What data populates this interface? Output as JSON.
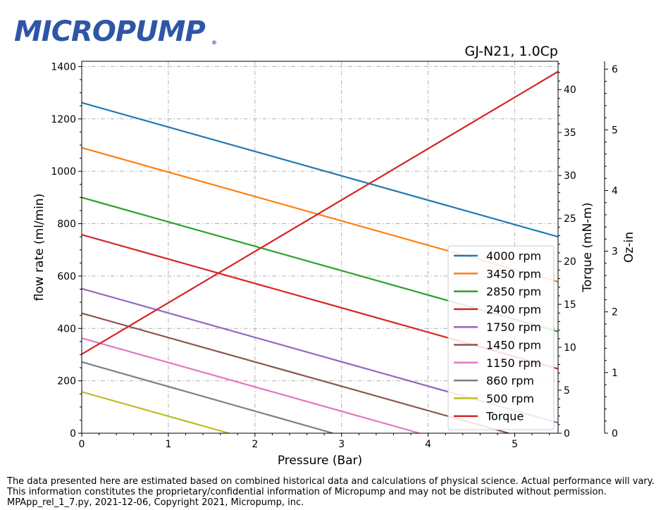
{
  "brand": {
    "logo_text": "MICROPUMP",
    "logo_mark": "®",
    "logo_color": "#2f56a6"
  },
  "chart_data": {
    "type": "line",
    "title": "GJ-N21,  1.0Cp",
    "xlabel": "Pressure (Bar)",
    "ylabel": "flow rate (ml/min)",
    "y2label": "Torque (mN-m)",
    "y3label": "Oz-in",
    "xlim": [
      0,
      5.5
    ],
    "ylim": [
      0,
      1420
    ],
    "y2lim": [
      0,
      43.3
    ],
    "y3lim": [
      0,
      6.13
    ],
    "xticks": [
      0,
      1,
      2,
      3,
      4,
      5
    ],
    "yticks": [
      0,
      200,
      400,
      600,
      800,
      1000,
      1200,
      1400
    ],
    "y2ticks": [
      0,
      5,
      10,
      15,
      20,
      25,
      30,
      35,
      40
    ],
    "y3ticks": [
      0,
      1,
      2,
      3,
      4,
      5,
      6
    ],
    "grid": true,
    "legend_position": "lower-right",
    "series": [
      {
        "name": "4000 rpm",
        "color": "#1f77b4",
        "axis": "flow",
        "x": [
          0,
          5.5
        ],
        "y": [
          1262,
          750
        ]
      },
      {
        "name": "3450 rpm",
        "color": "#ff7f0e",
        "axis": "flow",
        "x": [
          0,
          5.5
        ],
        "y": [
          1090,
          578
        ]
      },
      {
        "name": "2850 rpm",
        "color": "#2ca02c",
        "axis": "flow",
        "x": [
          0,
          5.5
        ],
        "y": [
          900,
          388
        ]
      },
      {
        "name": "2400 rpm",
        "color": "#d62728",
        "axis": "flow",
        "x": [
          0,
          5.5
        ],
        "y": [
          758,
          246
        ]
      },
      {
        "name": "1750 rpm",
        "color": "#9467bd",
        "axis": "flow",
        "x": [
          0,
          5.5
        ],
        "y": [
          552,
          40
        ]
      },
      {
        "name": "1450 rpm",
        "color": "#8c564b",
        "axis": "flow",
        "x": [
          0,
          4.93
        ],
        "y": [
          458,
          0
        ]
      },
      {
        "name": "1150 rpm",
        "color": "#e377c2",
        "axis": "flow",
        "x": [
          0,
          3.9
        ],
        "y": [
          363,
          0
        ]
      },
      {
        "name": "860 rpm",
        "color": "#7f7f7f",
        "axis": "flow",
        "x": [
          0,
          2.9
        ],
        "y": [
          272,
          0
        ]
      },
      {
        "name": "500 rpm",
        "color": "#bcbd22",
        "axis": "flow",
        "x": [
          0,
          1.7
        ],
        "y": [
          158,
          0
        ]
      },
      {
        "name": "Torque",
        "color": "#d62728",
        "axis": "torque",
        "x": [
          0,
          5.5
        ],
        "y": [
          9.2,
          42.1
        ]
      }
    ]
  },
  "footer": {
    "line1": "The data presented here are estimated based on combined historical data and calculations of physical science.  Actual performance will vary.",
    "line2": "This information constitutes the proprietary/confidential information of Micropump and may not be distributed without permission.",
    "line3": "MPApp_rel_1_7.py, 2021-12-06, Copyright 2021, Micropump, inc."
  }
}
